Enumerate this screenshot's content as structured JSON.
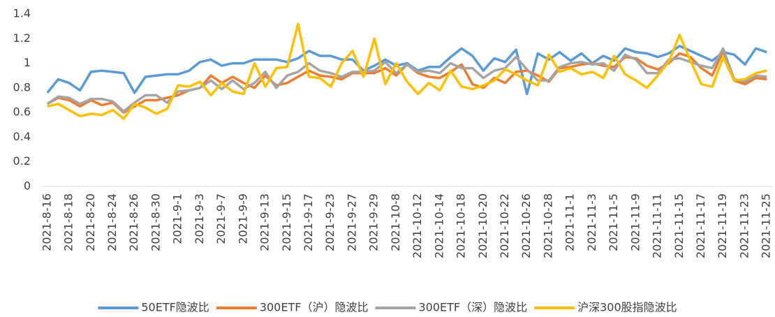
{
  "chart_data": {
    "type": "line",
    "categories": [
      "2021-8-16",
      null,
      "2021-8-18",
      null,
      "2021-8-20",
      null,
      "2021-8-24",
      null,
      "2021-8-26",
      null,
      "2021-8-30",
      null,
      "2021-9-1",
      null,
      "2021-9-3",
      null,
      "2021-9-7",
      null,
      "2021-9-9",
      null,
      "2021-9-13",
      null,
      "2021-9-15",
      null,
      "2021-9-17",
      null,
      "2021-9-23",
      null,
      "2021-9-27",
      null,
      "2021-9-29",
      null,
      "2021-10-8",
      null,
      "2021-10-12",
      null,
      "2021-10-14",
      null,
      "2021-10-18",
      null,
      "2021-10-20",
      null,
      "2021-10-22",
      null,
      "2021-10-26",
      null,
      "2021-10-28",
      null,
      "2021-11-1",
      null,
      "2021-11-3",
      null,
      "2021-11-5",
      null,
      "2021-11-9",
      null,
      "2021-11-11",
      null,
      "2021-11-15",
      null,
      "2021-11-17",
      null,
      "2021-11-19",
      null,
      "2021-11-23",
      null,
      "2021-11-25"
    ],
    "series": [
      {
        "name": "50ETF隐波比",
        "color": "#5b9bd5",
        "values": [
          0.76,
          0.87,
          0.84,
          0.78,
          0.93,
          0.94,
          0.93,
          0.92,
          0.76,
          0.89,
          0.9,
          0.91,
          0.91,
          0.94,
          1.01,
          1.03,
          0.98,
          1.0,
          1.0,
          1.03,
          1.03,
          1.03,
          1.01,
          1.04,
          1.1,
          1.06,
          1.06,
          1.03,
          1.03,
          0.94,
          0.98,
          1.03,
          0.98,
          1.0,
          0.94,
          0.97,
          0.97,
          1.05,
          1.12,
          1.06,
          0.94,
          1.04,
          1.01,
          1.11,
          0.75,
          1.08,
          1.03,
          1.09,
          1.02,
          1.08,
          1.0,
          1.06,
          1.02,
          1.12,
          1.09,
          1.08,
          1.05,
          1.08,
          1.14,
          1.1,
          1.06,
          1.02,
          1.09,
          1.07,
          0.99,
          1.12,
          1.09
        ]
      },
      {
        "name": "300ETF（沪）隐波比",
        "color": "#ed7d31",
        "values": [
          0.67,
          0.72,
          0.7,
          0.65,
          0.7,
          0.66,
          0.68,
          0.6,
          0.65,
          0.7,
          0.7,
          0.72,
          0.74,
          0.78,
          0.8,
          0.9,
          0.84,
          0.89,
          0.84,
          0.8,
          0.9,
          0.82,
          0.84,
          0.89,
          0.94,
          0.9,
          0.89,
          0.87,
          0.92,
          0.92,
          0.92,
          0.96,
          0.9,
          0.99,
          0.92,
          0.89,
          0.88,
          0.93,
          0.99,
          0.83,
          0.8,
          0.88,
          0.84,
          0.93,
          0.94,
          0.9,
          0.85,
          0.96,
          0.97,
          0.99,
          1.0,
          0.98,
          0.97,
          1.05,
          1.04,
          0.98,
          0.95,
          1.0,
          1.08,
          1.05,
          0.96,
          0.9,
          1.1,
          0.86,
          0.83,
          0.88,
          0.87
        ]
      },
      {
        "name": "300ETF（深）隐波比",
        "color": "#a5a5a5",
        "values": [
          0.67,
          0.73,
          0.72,
          0.67,
          0.71,
          0.71,
          0.69,
          0.61,
          0.68,
          0.74,
          0.74,
          0.68,
          0.77,
          0.78,
          0.8,
          0.86,
          0.79,
          0.86,
          0.79,
          0.84,
          0.93,
          0.8,
          0.9,
          0.93,
          1.0,
          0.94,
          0.92,
          0.89,
          0.93,
          0.93,
          0.94,
          1.01,
          0.92,
          0.99,
          0.93,
          0.94,
          0.92,
          1.0,
          0.96,
          0.96,
          0.88,
          0.94,
          0.96,
          1.05,
          0.95,
          0.86,
          0.86,
          0.97,
          1.0,
          1.01,
          0.99,
          1.0,
          0.94,
          1.07,
          1.03,
          0.92,
          0.92,
          1.03,
          1.04,
          1.01,
          0.98,
          0.96,
          1.12,
          0.87,
          0.85,
          0.9,
          0.89
        ]
      },
      {
        "name": "沪深300股指隐波比",
        "color": "#ffc000",
        "values": [
          0.65,
          0.67,
          0.62,
          0.57,
          0.59,
          0.58,
          0.62,
          0.55,
          0.67,
          0.64,
          0.59,
          0.63,
          0.82,
          0.81,
          0.85,
          0.74,
          0.84,
          0.77,
          0.75,
          1.0,
          0.81,
          0.96,
          0.97,
          1.32,
          0.89,
          0.88,
          0.81,
          1.0,
          1.1,
          0.89,
          1.2,
          0.83,
          1.0,
          0.85,
          0.75,
          0.84,
          0.78,
          0.94,
          0.81,
          0.79,
          0.82,
          0.86,
          0.95,
          0.91,
          0.86,
          0.82,
          1.07,
          0.93,
          0.96,
          0.91,
          0.93,
          0.88,
          1.06,
          0.91,
          0.86,
          0.8,
          0.9,
          1.01,
          1.23,
          1.02,
          0.83,
          0.81,
          1.05,
          0.86,
          0.87,
          0.92,
          0.94
        ]
      }
    ],
    "ylim": [
      0,
      1.4
    ],
    "yticks": [
      0,
      0.2,
      0.4,
      0.6,
      0.8,
      1,
      1.2,
      1.4
    ],
    "grid": false,
    "legend": "bottom"
  }
}
